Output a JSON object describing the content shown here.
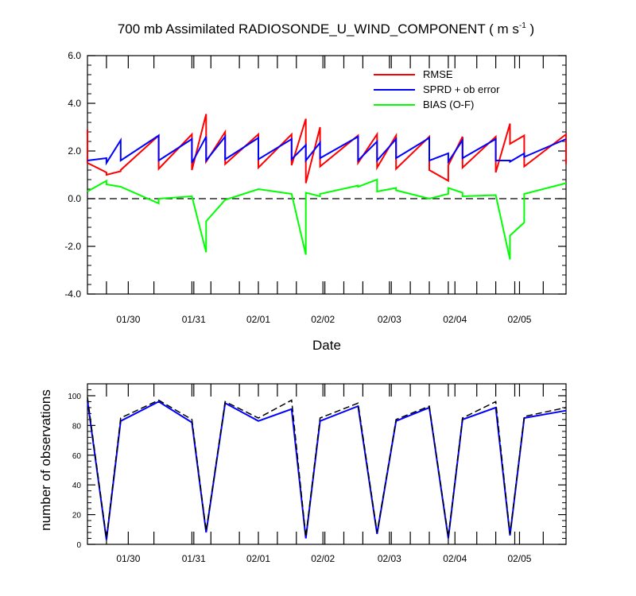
{
  "chart_data": [
    {
      "type": "line",
      "title": {
        "prefix": "700 mb Assimilated RADIOSONDE_U_WIND_COMPONENT ( m s",
        "superscript": "-1",
        "suffix": " )"
      },
      "xlabel": "Date",
      "ylabel": "",
      "xlim": [
        0,
        50.4
      ],
      "ylim": [
        -4.0,
        6.0
      ],
      "yticks": [
        6.0,
        4.0,
        2.0,
        0.0,
        -2.0,
        -4.0
      ],
      "ytick_labels": [
        "6.0",
        "4.0",
        "2.0",
        "0.0",
        "-2.0",
        "-4.0"
      ],
      "x_date_ticks": [
        {
          "x": 4.3,
          "label": "01/30"
        },
        {
          "x": 11.2,
          "label": "01/31"
        },
        {
          "x": 18.0,
          "label": "02/01"
        },
        {
          "x": 24.8,
          "label": "02/02"
        },
        {
          "x": 31.8,
          "label": "02/03"
        },
        {
          "x": 38.7,
          "label": "02/04"
        },
        {
          "x": 45.5,
          "label": "02/05"
        }
      ],
      "x_minor_ticks": [
        2,
        7,
        11,
        13,
        16,
        20,
        22,
        25,
        27,
        29,
        32,
        34,
        36,
        38,
        41,
        43,
        45,
        48
      ],
      "zero_line": {
        "y": 0.0,
        "style": "dashed"
      },
      "legend": [
        {
          "label": "RMSE",
          "color": "#ff0000"
        },
        {
          "label": "SPRD + ob error",
          "color": "#0000ff"
        },
        {
          "label": "BIAS (O-F)",
          "color": "#00ff00"
        }
      ],
      "series": [
        {
          "name": "RMSE",
          "color": "#ff0000",
          "x": [
            0,
            0,
            2,
            2,
            3.5,
            3.5,
            7.5,
            7.5,
            11,
            11,
            12.5,
            12.5,
            14.5,
            14.5,
            18,
            18,
            21.5,
            21.5,
            23,
            23,
            24.5,
            24.5,
            28.5,
            28.5,
            30.5,
            30.5,
            32.5,
            32.5,
            36,
            36,
            38,
            38,
            39.5,
            39.5,
            43,
            43,
            44.5,
            44.5,
            46,
            46,
            50.4,
            50.4
          ],
          "y": [
            2.9,
            1.5,
            1.1,
            1.0,
            1.15,
            1.2,
            2.65,
            1.25,
            2.7,
            1.2,
            3.55,
            1.55,
            2.8,
            1.45,
            2.7,
            1.3,
            2.7,
            1.4,
            3.35,
            0.65,
            3.0,
            1.35,
            2.65,
            1.5,
            2.7,
            1.3,
            2.65,
            1.25,
            2.6,
            1.2,
            0.75,
            1.4,
            2.6,
            1.3,
            2.6,
            1.1,
            3.15,
            2.3,
            2.65,
            1.35,
            2.7,
            1.45
          ]
        },
        {
          "name": "SPRD + ob error",
          "color": "#0000ff",
          "x": [
            0,
            2,
            2,
            3.5,
            3.5,
            7.5,
            7.5,
            11,
            11,
            12.5,
            12.5,
            14.5,
            14.5,
            18,
            18,
            21.5,
            21.5,
            23,
            23,
            24.5,
            24.5,
            28.5,
            28.5,
            30.5,
            30.5,
            32.5,
            32.5,
            36,
            36,
            38,
            38,
            39.5,
            39.5,
            43,
            43,
            44.5,
            44.5,
            46,
            46,
            50.4
          ],
          "y": [
            1.6,
            1.7,
            1.5,
            2.45,
            1.6,
            2.65,
            1.6,
            2.5,
            1.5,
            2.6,
            1.6,
            2.6,
            1.65,
            2.55,
            1.65,
            2.5,
            1.65,
            2.25,
            1.6,
            2.35,
            1.7,
            2.6,
            1.6,
            2.4,
            1.6,
            2.5,
            1.7,
            2.55,
            1.6,
            1.9,
            1.55,
            2.45,
            1.7,
            2.5,
            1.6,
            1.6,
            1.55,
            1.9,
            1.75,
            2.5
          ]
        },
        {
          "name": "BIAS (O-F)",
          "color": "#00ff00",
          "x": [
            0,
            2,
            2,
            3.5,
            7.5,
            7.5,
            11,
            12.5,
            12.5,
            14.5,
            18,
            21.5,
            23,
            23,
            24.5,
            24.5,
            28.5,
            28.5,
            30.5,
            30.5,
            32.5,
            32.5,
            36,
            38,
            38,
            39.5,
            39.5,
            43,
            44.5,
            44.5,
            46,
            46,
            50.4
          ],
          "y": [
            0.3,
            0.75,
            0.6,
            0.5,
            -0.2,
            0.0,
            0.1,
            -2.25,
            -0.95,
            -0.05,
            0.4,
            0.2,
            -2.35,
            0.25,
            0.1,
            0.2,
            0.55,
            0.5,
            0.8,
            0.3,
            0.45,
            0.35,
            0.0,
            0.2,
            0.45,
            0.25,
            0.1,
            0.15,
            -2.55,
            -1.55,
            -1.0,
            0.2,
            0.65
          ]
        }
      ]
    },
    {
      "type": "line",
      "title": "",
      "xlabel": "",
      "ylabel": "number of observations",
      "xlim": [
        0,
        50.4
      ],
      "ylim": [
        0,
        108
      ],
      "yticks": [
        0,
        20,
        40,
        60,
        80,
        100
      ],
      "ytick_labels": [
        "0",
        "20",
        "40",
        "60",
        "80",
        "100"
      ],
      "series": [
        {
          "name": "observations (solid)",
          "color": "#0000ff",
          "x": [
            0,
            2,
            3.5,
            7.5,
            11,
            12.5,
            14.5,
            18,
            21.5,
            23,
            24.5,
            28.5,
            30.5,
            32.5,
            36,
            38,
            39.5,
            43,
            44.5,
            46,
            50.4
          ],
          "y": [
            97,
            3,
            83,
            96,
            82,
            8,
            95,
            83,
            91,
            4,
            83,
            93,
            7,
            83,
            92,
            4,
            84,
            92,
            6,
            85,
            90
          ]
        },
        {
          "name": "observations (dashed)",
          "color": "#000000",
          "x": [
            0,
            2,
            3.5,
            7.5,
            11,
            12.5,
            14.5,
            18,
            21.5,
            23,
            24.5,
            28.5,
            30.5,
            32.5,
            36,
            38,
            39.5,
            43,
            44.5,
            46,
            50.4
          ],
          "y": [
            99,
            4,
            85,
            97,
            84,
            9,
            96,
            85,
            97,
            5,
            85,
            95,
            8,
            84,
            93,
            5,
            85,
            96,
            7,
            86,
            92
          ]
        }
      ]
    }
  ]
}
